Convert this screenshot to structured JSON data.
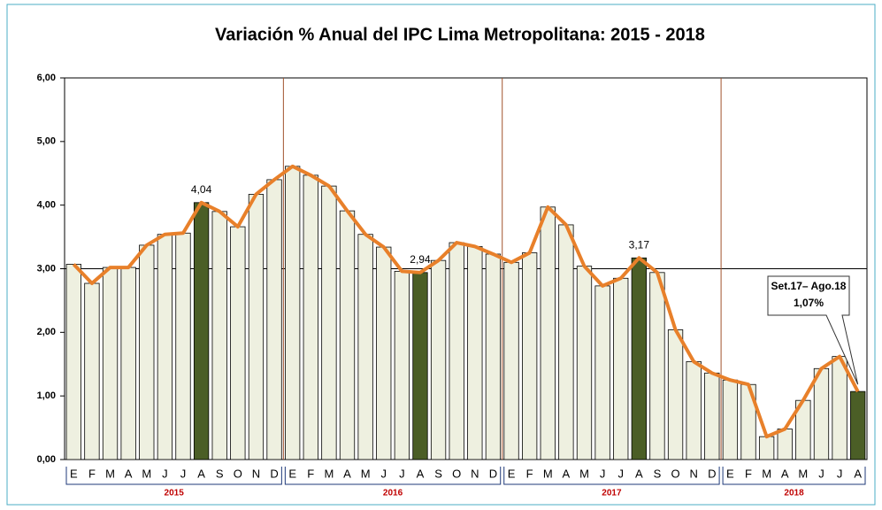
{
  "chart_data": {
    "type": "bar",
    "title": "Variación % Anual del IPC Lima Metropolitana: 2015 - 2018",
    "groups": [
      {
        "label": "2015",
        "categories": [
          "E",
          "F",
          "M",
          "A",
          "M",
          "J",
          "J",
          "A",
          "S",
          "O",
          "N",
          "D"
        ]
      },
      {
        "label": "2016",
        "categories": [
          "E",
          "F",
          "M",
          "A",
          "M",
          "J",
          "J",
          "A",
          "S",
          "O",
          "N",
          "D"
        ]
      },
      {
        "label": "2017",
        "categories": [
          "E",
          "F",
          "M",
          "A",
          "M",
          "J",
          "J",
          "A",
          "S",
          "O",
          "N",
          "D"
        ]
      },
      {
        "label": "2018",
        "categories": [
          "E",
          "F",
          "M",
          "A",
          "M",
          "J",
          "J",
          "A"
        ]
      }
    ],
    "values": [
      3.07,
      2.77,
      3.02,
      3.02,
      3.37,
      3.54,
      3.56,
      4.04,
      3.9,
      3.66,
      4.17,
      4.4,
      4.61,
      4.47,
      4.3,
      3.91,
      3.54,
      3.34,
      2.96,
      2.94,
      3.13,
      3.41,
      3.35,
      3.23,
      3.1,
      3.25,
      3.97,
      3.69,
      3.04,
      2.73,
      2.85,
      3.17,
      2.94,
      2.04,
      1.54,
      1.36,
      1.25,
      1.18,
      0.36,
      0.48,
      0.93,
      1.43,
      1.62,
      1.07
    ],
    "value_labels": [
      null,
      null,
      null,
      null,
      null,
      null,
      null,
      "4,04",
      null,
      null,
      null,
      null,
      null,
      null,
      null,
      null,
      null,
      null,
      null,
      "2,94",
      null,
      null,
      null,
      null,
      null,
      null,
      null,
      null,
      null,
      null,
      null,
      "3,17",
      null,
      null,
      null,
      null,
      null,
      null,
      null,
      null,
      null,
      null,
      null,
      null
    ],
    "color": "#eef0e0",
    "highlight": [
      7,
      19,
      31,
      43
    ],
    "highlight_color": "#4b5e26",
    "line_color": "#e8802a",
    "reference_line": 3,
    "ylim": [
      0,
      6
    ],
    "yticks": [
      {
        "value": 0,
        "label": "0,00"
      },
      {
        "value": 1,
        "label": "1,00"
      },
      {
        "value": 2,
        "label": "2,00"
      },
      {
        "value": 3,
        "label": "3,00"
      },
      {
        "value": 4,
        "label": "4,00"
      },
      {
        "value": 5,
        "label": "5,00"
      },
      {
        "value": 6,
        "label": "6,00"
      }
    ],
    "annotation": {
      "lines": [
        "Set.17– Ago.18",
        "1,07%"
      ]
    }
  }
}
